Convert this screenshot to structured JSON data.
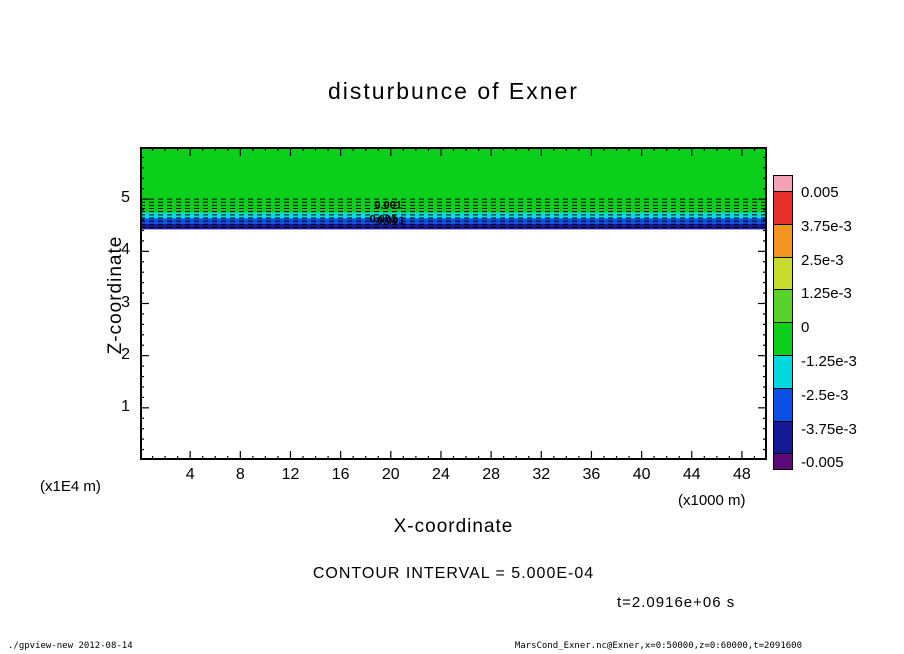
{
  "title": "disturbunce of Exner",
  "annotations": {
    "contour_interval": "CONTOUR INTERVAL = 5.000E-04",
    "time": "t=2.0916e+06 s"
  },
  "footer": {
    "left": "./gpview-new  2012-08-14",
    "right": "MarsCond_Exner.nc@Exner,x=0:50000,z=0:60000,t=2091600"
  },
  "axes": {
    "x": {
      "label": "X-coordinate",
      "unit": "(x1000 m)",
      "range": [
        0,
        50
      ],
      "major_ticks": [
        4,
        8,
        12,
        16,
        20,
        24,
        28,
        32,
        36,
        40,
        44,
        48
      ],
      "minor_step": 1
    },
    "z": {
      "label": "Z-coordinate",
      "unit": "(x1E4 m)",
      "range": [
        0,
        6
      ],
      "major_ticks": [
        1,
        2,
        3,
        4,
        5
      ],
      "minor_step": 0.2
    }
  },
  "colorbar": {
    "tick_labels": [
      "0.005",
      "3.75e-3",
      "2.5e-3",
      "1.25e-3",
      "0",
      "-1.25e-3",
      "-2.5e-3",
      "-3.75e-3",
      "-0.005"
    ],
    "cell_colors": [
      "#f2a2b4",
      "#e8302a",
      "#f29422",
      "#c8dc2e",
      "#5ad22c",
      "#0ccf1c",
      "#00dade",
      "#0a50e6",
      "#141a96",
      "#5c0a78"
    ]
  },
  "chart_data": {
    "type": "heatmap",
    "title": "disturbunce of Exner",
    "xlabel": "X-coordinate",
    "ylabel": "Z-coordinate",
    "x_range": [
      0,
      50
    ],
    "z_range": [
      0,
      6
    ],
    "grid": false,
    "legend_position": "right-colorbar",
    "contour_interval": 0.0005,
    "fill_bands": [
      {
        "z_top": 6.0,
        "z_bottom": 4.74,
        "color": "#0ccf1c",
        "value_range": "0 to -1.25e-3"
      },
      {
        "z_top": 4.74,
        "z_bottom": 4.63,
        "color": "#00dade",
        "value_range": "-1.25e-3 to -2.5e-3"
      },
      {
        "z_top": 4.63,
        "z_bottom": 4.53,
        "color": "#0a50e6",
        "value_range": "-2.5e-3 to -3.75e-3"
      },
      {
        "z_top": 4.53,
        "z_bottom": 4.42,
        "color": "#141a96",
        "value_range": "-3.75e-3 to -0.005"
      },
      {
        "z_top": 4.42,
        "z_bottom": 0.0,
        "color": "#ffffff",
        "value_range": "below -0.005 (blank)"
      }
    ],
    "dashed_contour_z": [
      5.0,
      4.94,
      4.88,
      4.82,
      4.76,
      4.7,
      4.64,
      4.58,
      4.52,
      4.46
    ],
    "contour_labels": [
      {
        "text": "0.001",
        "x": 18.7,
        "z": 4.9
      },
      {
        "text": "0.001",
        "x": 18.3,
        "z": 4.63
      },
      {
        "text": "0.001",
        "x": 18.9,
        "z": 4.6
      }
    ]
  }
}
